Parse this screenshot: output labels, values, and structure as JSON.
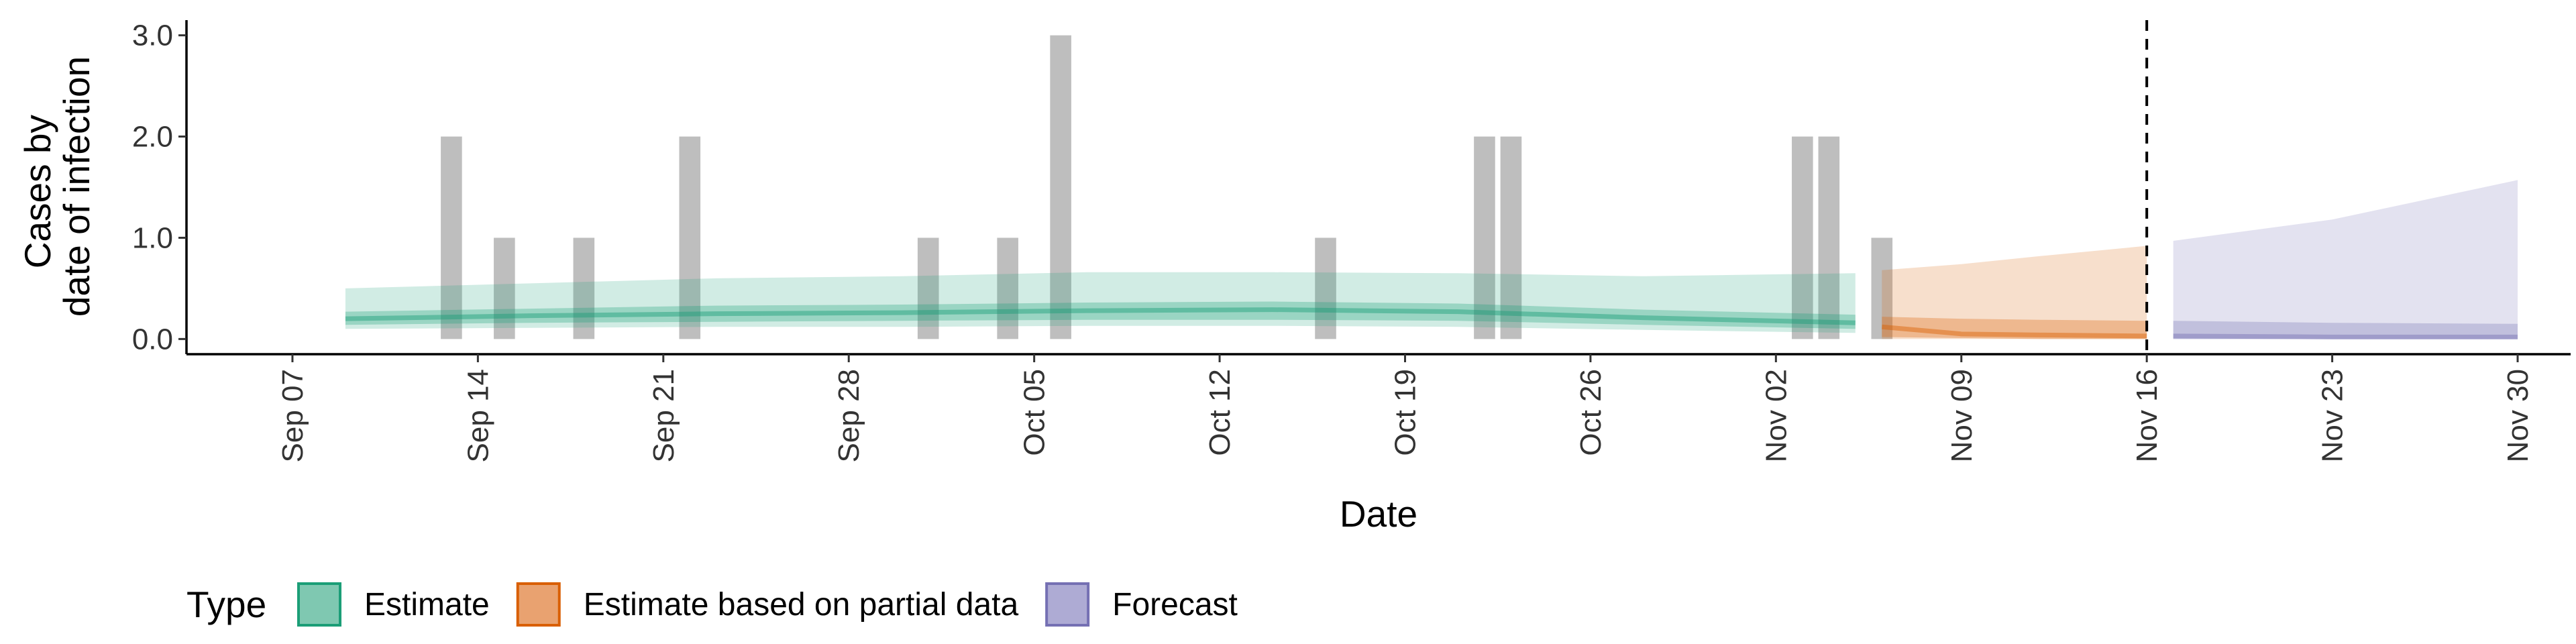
{
  "chart_data": {
    "type": "area",
    "xlabel": "Date",
    "ylabel_lines": [
      "Cases by",
      "date of infection"
    ],
    "xlim": [
      "2020-09-03",
      "2020-12-02"
    ],
    "ylim": [
      -0.15,
      3.15
    ],
    "y_ticks": [
      {
        "value": 0,
        "label": "0.0"
      },
      {
        "value": 1,
        "label": "1.0"
      },
      {
        "value": 2,
        "label": "2.0"
      },
      {
        "value": 3,
        "label": "3.0"
      }
    ],
    "x_ticks": [
      {
        "date": "2020-09-07",
        "label": "Sep 07"
      },
      {
        "date": "2020-09-14",
        "label": "Sep 14"
      },
      {
        "date": "2020-09-21",
        "label": "Sep 21"
      },
      {
        "date": "2020-09-28",
        "label": "Sep 28"
      },
      {
        "date": "2020-10-05",
        "label": "Oct 05"
      },
      {
        "date": "2020-10-12",
        "label": "Oct 12"
      },
      {
        "date": "2020-10-19",
        "label": "Oct 19"
      },
      {
        "date": "2020-10-26",
        "label": "Oct 26"
      },
      {
        "date": "2020-11-02",
        "label": "Nov 02"
      },
      {
        "date": "2020-11-09",
        "label": "Nov 09"
      },
      {
        "date": "2020-11-16",
        "label": "Nov 16"
      },
      {
        "date": "2020-11-23",
        "label": "Nov 23"
      },
      {
        "date": "2020-11-30",
        "label": "Nov 30"
      }
    ],
    "reported_cases": [
      {
        "date": "2020-09-13",
        "value": 2
      },
      {
        "date": "2020-09-15",
        "value": 1
      },
      {
        "date": "2020-09-18",
        "value": 1
      },
      {
        "date": "2020-09-22",
        "value": 2
      },
      {
        "date": "2020-10-01",
        "value": 1
      },
      {
        "date": "2020-10-04",
        "value": 1
      },
      {
        "date": "2020-10-06",
        "value": 3
      },
      {
        "date": "2020-10-16",
        "value": 1
      },
      {
        "date": "2020-10-22",
        "value": 2
      },
      {
        "date": "2020-10-23",
        "value": 2
      },
      {
        "date": "2020-11-03",
        "value": 2
      },
      {
        "date": "2020-11-04",
        "value": 2
      },
      {
        "date": "2020-11-06",
        "value": 1
      }
    ],
    "series": [
      {
        "name": "Estimate",
        "color": "#1b9e77",
        "points": [
          {
            "date": "2020-09-09",
            "outer_low": 0.1,
            "inner_low": 0.14,
            "median": 0.2,
            "inner_high": 0.27,
            "outer_high": 0.5
          },
          {
            "date": "2020-09-16",
            "outer_low": 0.11,
            "inner_low": 0.16,
            "median": 0.23,
            "inner_high": 0.3,
            "outer_high": 0.55
          },
          {
            "date": "2020-09-23",
            "outer_low": 0.12,
            "inner_low": 0.17,
            "median": 0.25,
            "inner_high": 0.33,
            "outer_high": 0.6
          },
          {
            "date": "2020-09-30",
            "outer_low": 0.12,
            "inner_low": 0.18,
            "median": 0.26,
            "inner_high": 0.34,
            "outer_high": 0.62
          },
          {
            "date": "2020-10-07",
            "outer_low": 0.13,
            "inner_low": 0.19,
            "median": 0.28,
            "inner_high": 0.36,
            "outer_high": 0.66
          },
          {
            "date": "2020-10-14",
            "outer_low": 0.13,
            "inner_low": 0.19,
            "median": 0.29,
            "inner_high": 0.37,
            "outer_high": 0.66
          },
          {
            "date": "2020-10-21",
            "outer_low": 0.12,
            "inner_low": 0.18,
            "median": 0.27,
            "inner_high": 0.35,
            "outer_high": 0.65
          },
          {
            "date": "2020-10-28",
            "outer_low": 0.09,
            "inner_low": 0.14,
            "median": 0.21,
            "inner_high": 0.29,
            "outer_high": 0.62
          },
          {
            "date": "2020-11-05",
            "outer_low": 0.06,
            "inner_low": 0.1,
            "median": 0.16,
            "inner_high": 0.24,
            "outer_high": 0.65
          }
        ]
      },
      {
        "name": "Estimate based on partial data",
        "color": "#d95f02",
        "points": [
          {
            "date": "2020-11-06",
            "outer_low": 0.0,
            "inner_low": 0.02,
            "median": 0.12,
            "inner_high": 0.22,
            "outer_high": 0.68
          },
          {
            "date": "2020-11-09",
            "outer_low": 0.0,
            "inner_low": 0.01,
            "median": 0.05,
            "inner_high": 0.2,
            "outer_high": 0.74
          },
          {
            "date": "2020-11-12",
            "outer_low": 0.0,
            "inner_low": 0.0,
            "median": 0.04,
            "inner_high": 0.19,
            "outer_high": 0.82
          },
          {
            "date": "2020-11-16",
            "outer_low": 0.0,
            "inner_low": 0.0,
            "median": 0.03,
            "inner_high": 0.18,
            "outer_high": 0.92
          }
        ]
      },
      {
        "name": "Forecast",
        "color": "#7570b3",
        "points": [
          {
            "date": "2020-11-17",
            "outer_low": 0.0,
            "inner_low": 0.0,
            "median": 0.03,
            "inner_high": 0.18,
            "outer_high": 0.97
          },
          {
            "date": "2020-11-23",
            "outer_low": 0.0,
            "inner_low": 0.0,
            "median": 0.02,
            "inner_high": 0.16,
            "outer_high": 1.18
          },
          {
            "date": "2020-11-30",
            "outer_low": 0.0,
            "inner_low": 0.0,
            "median": 0.02,
            "inner_high": 0.15,
            "outer_high": 1.57
          }
        ]
      }
    ],
    "vline_date": "2020-11-16",
    "legend": {
      "title": "Type",
      "position": "bottom-left",
      "items": [
        {
          "label": "Estimate",
          "fill": "#7fc8b1",
          "stroke": "#1b9e77"
        },
        {
          "label": "Estimate based on partial data",
          "fill": "#e9a270",
          "stroke": "#d95f02"
        },
        {
          "label": "Forecast",
          "fill": "#aeabd4",
          "stroke": "#7570b3"
        }
      ]
    },
    "grid": false
  }
}
